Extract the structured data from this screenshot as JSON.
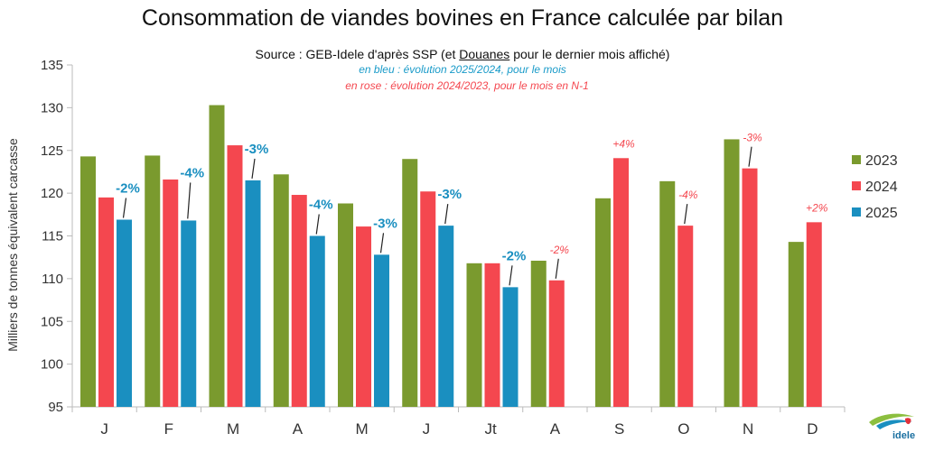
{
  "header": {
    "title": "Consommation de viandes bovines en France calculée par bilan",
    "subtitle_before": "Source : GEB-Idele d'après SSP (et ",
    "subtitle_link": "Douanes",
    "subtitle_after": " pour le dernier mois affiché)",
    "note_blue": "en bleu : évolution 2025/2024, pour le mois",
    "note_pink": "en rose : évolution 2024/2023, pour le mois en N-1"
  },
  "logo": {
    "text": "idele"
  },
  "chart_data": {
    "type": "bar",
    "title": "Consommation de viandes bovines en France calculée par bilan",
    "ylabel": "Milliers de tonnes équivalent carcasse",
    "xlabel": "",
    "ylim": [
      95,
      135
    ],
    "yticks": [
      95,
      100,
      105,
      110,
      115,
      120,
      125,
      130,
      135
    ],
    "categories": [
      "J",
      "F",
      "M",
      "A",
      "M",
      "J",
      "Jt",
      "A",
      "S",
      "O",
      "N",
      "D"
    ],
    "series": [
      {
        "name": "2023",
        "color": "#7a9a2e",
        "values": [
          124.3,
          124.4,
          130.3,
          122.2,
          118.8,
          124.0,
          111.8,
          112.1,
          119.4,
          121.4,
          126.3,
          114.3
        ]
      },
      {
        "name": "2024",
        "color": "#f4474f",
        "values": [
          119.5,
          121.6,
          125.6,
          119.8,
          116.1,
          120.2,
          111.8,
          109.8,
          124.1,
          116.2,
          122.9,
          116.6
        ]
      },
      {
        "name": "2025",
        "color": "#1a8fc0",
        "values": [
          116.9,
          116.8,
          121.5,
          115.0,
          112.8,
          116.2,
          109.0,
          null,
          null,
          null,
          null,
          null
        ]
      }
    ],
    "annotations": [
      {
        "category": 0,
        "series": "2025",
        "text": "-2%",
        "color": "blue"
      },
      {
        "category": 1,
        "series": "2025",
        "text": "-4%",
        "color": "blue"
      },
      {
        "category": 2,
        "series": "2025",
        "text": "-3%",
        "color": "blue"
      },
      {
        "category": 3,
        "series": "2025",
        "text": "-4%",
        "color": "blue"
      },
      {
        "category": 4,
        "series": "2025",
        "text": "-3%",
        "color": "blue"
      },
      {
        "category": 5,
        "series": "2025",
        "text": "-3%",
        "color": "blue"
      },
      {
        "category": 6,
        "series": "2025",
        "text": "-2%",
        "color": "blue"
      },
      {
        "category": 7,
        "series": "2024",
        "text": "-2%",
        "color": "pink"
      },
      {
        "category": 8,
        "series": "2024",
        "text": "+4%",
        "color": "pink"
      },
      {
        "category": 9,
        "series": "2024",
        "text": "-4%",
        "color": "pink"
      },
      {
        "category": 10,
        "series": "2024",
        "text": "-3%",
        "color": "pink"
      },
      {
        "category": 11,
        "series": "2024",
        "text": "+2%",
        "color": "pink"
      }
    ],
    "legend": {
      "position": "right",
      "entries": [
        "2023",
        "2024",
        "2025"
      ]
    }
  }
}
